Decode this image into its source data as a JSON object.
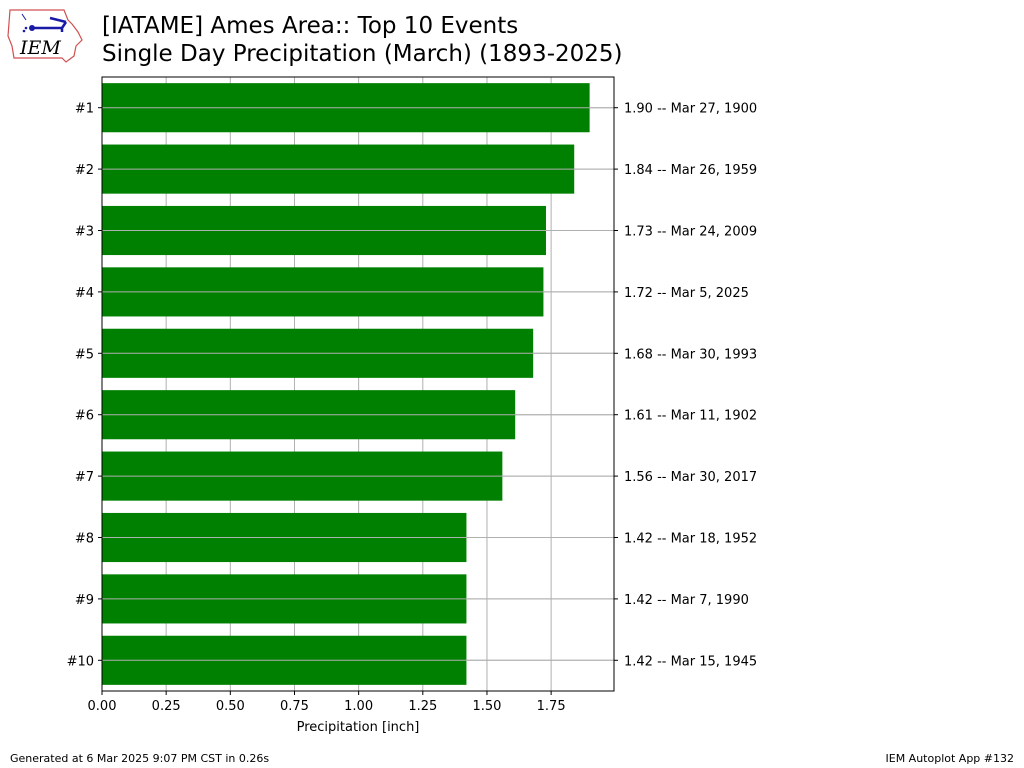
{
  "logo": {
    "text": "IEM"
  },
  "header": {
    "title_line1": "[IATAME] Ames Area:: Top 10 Events",
    "title_line2": "Single Day Precipitation (March) (1893-2025)"
  },
  "footer": {
    "generated": "Generated at 6 Mar 2025 9:07 PM CST in 0.26s",
    "app": "IEM Autoplot App #132"
  },
  "chart_data": {
    "type": "bar",
    "orientation": "horizontal",
    "categories": [
      "#1",
      "#2",
      "#3",
      "#4",
      "#5",
      "#6",
      "#7",
      "#8",
      "#9",
      "#10"
    ],
    "values": [
      1.9,
      1.84,
      1.73,
      1.72,
      1.68,
      1.61,
      1.56,
      1.42,
      1.42,
      1.42
    ],
    "right_labels": [
      "1.90 -- Mar 27, 1900",
      "1.84 -- Mar 26, 1959",
      "1.73 -- Mar 24, 2009",
      "1.72 -- Mar 5, 2025",
      "1.68 -- Mar 30, 1993",
      "1.61 -- Mar 11, 1902",
      "1.56 -- Mar 30, 2017",
      "1.42 -- Mar 18, 1952",
      "1.42 -- Mar 7, 1990",
      "1.42 -- Mar 15, 1945"
    ],
    "xlabel": "Precipitation [inch]",
    "xlim": [
      0,
      1.995
    ],
    "xticks": [
      "0.00",
      "0.25",
      "0.50",
      "0.75",
      "1.00",
      "1.25",
      "1.50",
      "1.75"
    ],
    "grid": true,
    "bar_color": "#008000",
    "grid_color": "#b0b0b0"
  }
}
